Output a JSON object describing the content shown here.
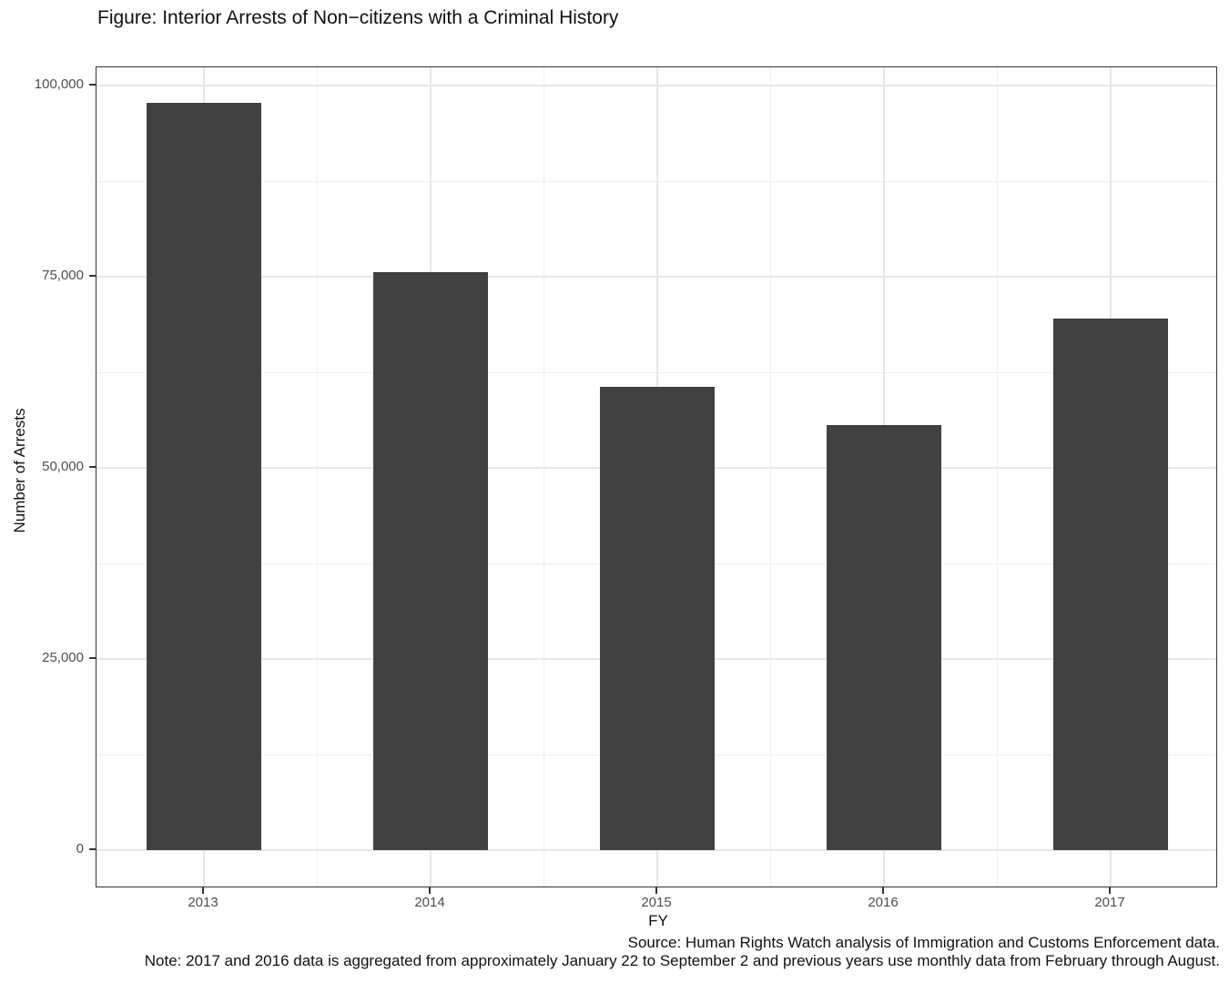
{
  "chart_data": {
    "type": "bar",
    "title": "Figure: Interior Arrests of Non−citizens with a Criminal History",
    "xlabel": "FY",
    "ylabel": "Number of Arrests",
    "categories": [
      "2013",
      "2014",
      "2015",
      "2016",
      "2017"
    ],
    "values": [
      97700,
      75600,
      60600,
      55600,
      69500
    ],
    "ylim": [
      0,
      100000
    ],
    "yticks": [
      0,
      25000,
      50000,
      75000,
      100000
    ],
    "ytick_labels": [
      "0",
      "25,000",
      "50,000",
      "75,000",
      "100,000"
    ],
    "grid": "major and minor, horizontal and vertical, light gray on white panel",
    "legend": "none",
    "bar_color": "#414141",
    "panel_border_color": "#333333",
    "caption_source": "Source: Human Rights Watch analysis of Immigration and Customs Enforcement data.",
    "caption_note": "Note: 2017 and 2016 data is aggregated from approximately January 22 to September 2 and previous years use monthly data from February through August."
  }
}
